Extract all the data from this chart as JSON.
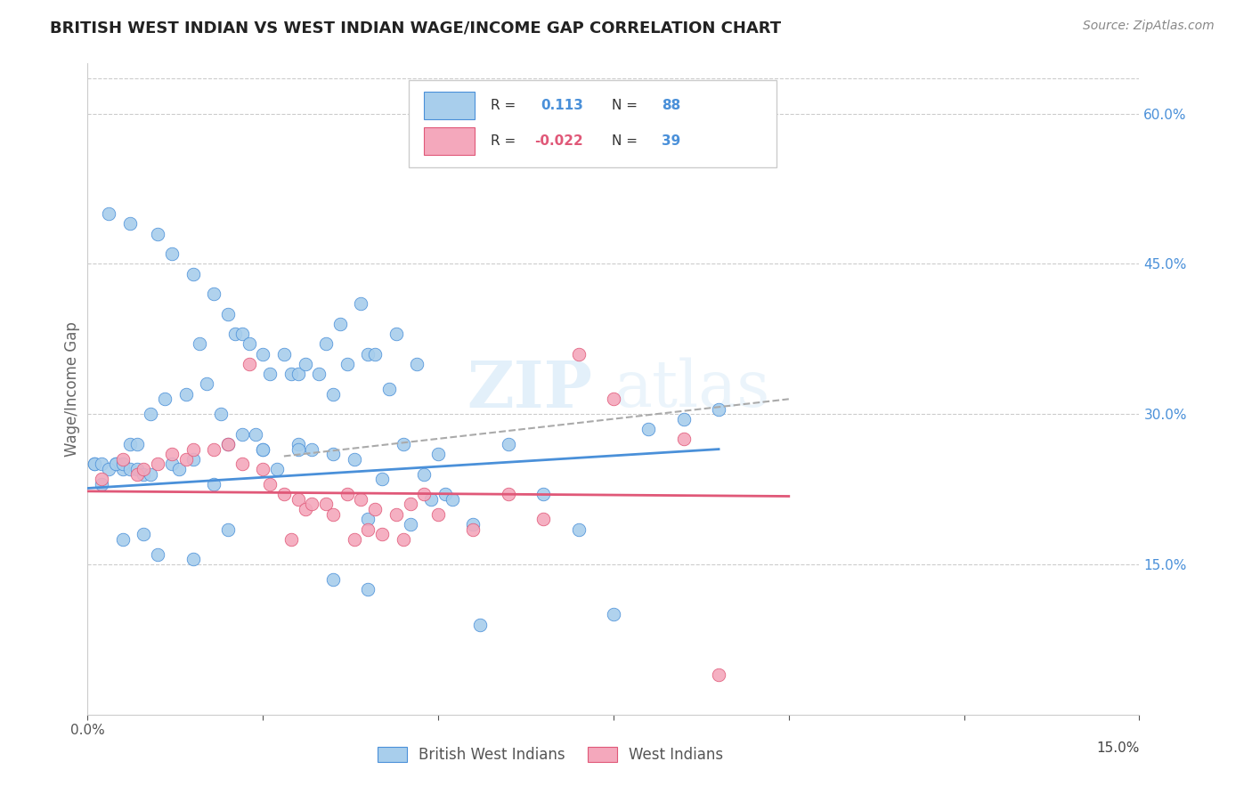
{
  "title": "BRITISH WEST INDIAN VS WEST INDIAN WAGE/INCOME GAP CORRELATION CHART",
  "source": "Source: ZipAtlas.com",
  "ylabel": "Wage/Income Gap",
  "right_yticks": [
    "60.0%",
    "45.0%",
    "30.0%",
    "15.0%"
  ],
  "right_ytick_vals": [
    0.6,
    0.45,
    0.3,
    0.15
  ],
  "xlim": [
    0.0,
    0.15
  ],
  "ylim": [
    0.0,
    0.65
  ],
  "watermark_zip": "ZIP",
  "watermark_atlas": "atlas",
  "legend1_r": "0.113",
  "legend1_n": "88",
  "legend2_r": "-0.022",
  "legend2_n": "39",
  "blue_color": "#A8CEEC",
  "pink_color": "#F4A8BC",
  "trend_blue_color": "#4A90D9",
  "trend_pink_color": "#E05878",
  "trend_gray_color": "#AAAAAA",
  "blue_scatter_x": [
    0.002,
    0.003,
    0.004,
    0.005,
    0.005,
    0.006,
    0.006,
    0.007,
    0.008,
    0.009,
    0.01,
    0.01,
    0.011,
    0.012,
    0.012,
    0.013,
    0.014,
    0.015,
    0.015,
    0.016,
    0.017,
    0.018,
    0.018,
    0.019,
    0.02,
    0.02,
    0.021,
    0.022,
    0.022,
    0.023,
    0.024,
    0.025,
    0.025,
    0.026,
    0.027,
    0.028,
    0.029,
    0.03,
    0.03,
    0.031,
    0.032,
    0.033,
    0.034,
    0.035,
    0.035,
    0.036,
    0.037,
    0.038,
    0.039,
    0.04,
    0.04,
    0.041,
    0.042,
    0.043,
    0.044,
    0.045,
    0.046,
    0.047,
    0.048,
    0.049,
    0.05,
    0.051,
    0.052,
    0.055,
    0.056,
    0.06,
    0.065,
    0.07,
    0.075,
    0.08,
    0.085,
    0.09,
    0.001,
    0.001,
    0.002,
    0.003,
    0.004,
    0.005,
    0.006,
    0.007,
    0.008,
    0.009,
    0.015,
    0.02,
    0.025,
    0.03,
    0.035,
    0.04
  ],
  "blue_scatter_y": [
    0.23,
    0.5,
    0.25,
    0.245,
    0.175,
    0.49,
    0.27,
    0.27,
    0.18,
    0.3,
    0.48,
    0.16,
    0.315,
    0.46,
    0.25,
    0.245,
    0.32,
    0.44,
    0.155,
    0.37,
    0.33,
    0.42,
    0.23,
    0.3,
    0.4,
    0.185,
    0.38,
    0.38,
    0.28,
    0.37,
    0.28,
    0.36,
    0.265,
    0.34,
    0.245,
    0.36,
    0.34,
    0.34,
    0.27,
    0.35,
    0.265,
    0.34,
    0.37,
    0.32,
    0.26,
    0.39,
    0.35,
    0.255,
    0.41,
    0.36,
    0.195,
    0.36,
    0.235,
    0.325,
    0.38,
    0.27,
    0.19,
    0.35,
    0.24,
    0.215,
    0.26,
    0.22,
    0.215,
    0.19,
    0.09,
    0.27,
    0.22,
    0.185,
    0.1,
    0.285,
    0.295,
    0.305,
    0.25,
    0.25,
    0.25,
    0.245,
    0.25,
    0.25,
    0.245,
    0.245,
    0.24,
    0.24,
    0.255,
    0.27,
    0.265,
    0.265,
    0.135,
    0.125
  ],
  "pink_scatter_x": [
    0.002,
    0.005,
    0.007,
    0.008,
    0.01,
    0.012,
    0.014,
    0.015,
    0.018,
    0.02,
    0.022,
    0.023,
    0.025,
    0.026,
    0.028,
    0.029,
    0.03,
    0.031,
    0.032,
    0.034,
    0.035,
    0.037,
    0.038,
    0.039,
    0.04,
    0.041,
    0.042,
    0.044,
    0.045,
    0.046,
    0.048,
    0.05,
    0.055,
    0.06,
    0.065,
    0.07,
    0.075,
    0.085,
    0.09
  ],
  "pink_scatter_y": [
    0.235,
    0.255,
    0.24,
    0.245,
    0.25,
    0.26,
    0.255,
    0.265,
    0.265,
    0.27,
    0.25,
    0.35,
    0.245,
    0.23,
    0.22,
    0.175,
    0.215,
    0.205,
    0.21,
    0.21,
    0.2,
    0.22,
    0.175,
    0.215,
    0.185,
    0.205,
    0.18,
    0.2,
    0.175,
    0.21,
    0.22,
    0.2,
    0.185,
    0.22,
    0.195,
    0.36,
    0.315,
    0.275,
    0.04
  ],
  "blue_trend_x": [
    0.0,
    0.09
  ],
  "blue_trend_y": [
    0.226,
    0.265
  ],
  "pink_trend_x": [
    0.0,
    0.1
  ],
  "pink_trend_y": [
    0.223,
    0.218
  ],
  "gray_trend_x": [
    0.028,
    0.1
  ],
  "gray_trend_y": [
    0.258,
    0.315
  ],
  "bottom_legend_blue": "British West Indians",
  "bottom_legend_pink": "West Indians"
}
